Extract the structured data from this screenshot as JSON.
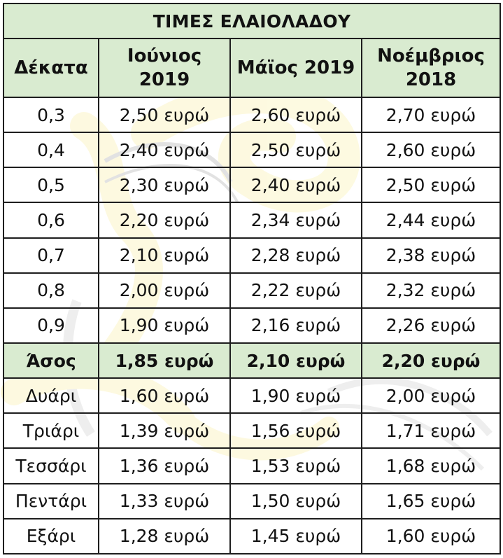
{
  "title": "ΤΙΜΕΣ ΕΛΑΙΟΛΑΔΟΥ",
  "headers": [
    "Δέκατα",
    "Ιούνιος 2019",
    "Μάϊος 2019",
    "Νοέμβριος 2018"
  ],
  "rows": [
    {
      "label": "0,3",
      "values": [
        "2,50 ευρώ",
        "2,60 ευρώ",
        "2,70 ευρώ"
      ]
    },
    {
      "label": "0,4",
      "values": [
        "2,40 ευρώ",
        "2,50 ευρώ",
        "2,60 ευρώ"
      ]
    },
    {
      "label": "0,5",
      "values": [
        "2,30 ευρώ",
        "2,40 ευρώ",
        "2,50 ευρώ"
      ]
    },
    {
      "label": "0,6",
      "values": [
        "2,20 ευρώ",
        "2,34 ευρώ",
        "2,44 ευρώ"
      ]
    },
    {
      "label": "0,7",
      "values": [
        "2,10 ευρώ",
        "2,28 ευρώ",
        "2,38 ευρώ"
      ]
    },
    {
      "label": "0,8",
      "values": [
        "2,00 ευρώ",
        "2,22 ευρώ",
        "2,32 ευρώ"
      ]
    },
    {
      "label": "0,9",
      "values": [
        "1,90 ευρώ",
        "2,16 ευρώ",
        "2,26 ευρώ"
      ]
    },
    {
      "label": "Άσος",
      "values": [
        "1,85 ευρώ",
        "2,10 ευρώ",
        "2,20 ευρώ"
      ],
      "highlight": true
    },
    {
      "label": "Δυάρι",
      "values": [
        "1,60 ευρώ",
        "1,90 ευρώ",
        "2,00 ευρώ"
      ]
    },
    {
      "label": "Τριάρι",
      "values": [
        "1,39 ευρώ",
        "1,56 ευρώ",
        "1,71 ευρώ"
      ]
    },
    {
      "label": "Τεσσάρι",
      "values": [
        "1,36 ευρώ",
        "1,53 ευρώ",
        "1,68 ευρώ"
      ]
    },
    {
      "label": "Πεντάρι",
      "values": [
        "1,33 ευρώ",
        "1,50 ευρώ",
        "1,65 ευρώ"
      ]
    },
    {
      "label": "Εξάρι",
      "values": [
        "1,28 ευρώ",
        "1,45 ευρώ",
        "1,60 ευρώ"
      ]
    }
  ],
  "colors": {
    "header_background": "#d9ebd0",
    "border": "#1e1e1e",
    "background_art_yellow": "#f2dd4a",
    "background_art_gray": "#9a9a9a"
  }
}
